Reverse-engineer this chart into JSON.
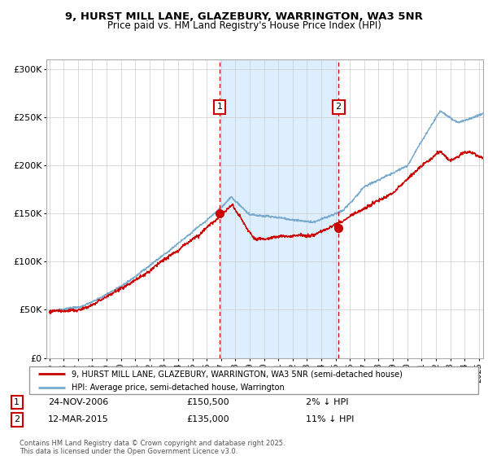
{
  "title_line1": "9, HURST MILL LANE, GLAZEBURY, WARRINGTON, WA3 5NR",
  "title_line2": "Price paid vs. HM Land Registry's House Price Index (HPI)",
  "xlim_start": 1994.8,
  "xlim_end": 2025.3,
  "ylim_min": 0,
  "ylim_max": 310000,
  "yticks": [
    0,
    50000,
    100000,
    150000,
    200000,
    250000,
    300000
  ],
  "ytick_labels": [
    "£0",
    "£50K",
    "£100K",
    "£150K",
    "£200K",
    "£250K",
    "£300K"
  ],
  "xticks": [
    1995,
    1996,
    1997,
    1998,
    1999,
    2000,
    2001,
    2002,
    2003,
    2004,
    2005,
    2006,
    2007,
    2008,
    2009,
    2010,
    2011,
    2012,
    2013,
    2014,
    2015,
    2016,
    2017,
    2018,
    2019,
    2020,
    2021,
    2022,
    2023,
    2024,
    2025
  ],
  "sale1_x": 2006.9,
  "sale1_y": 150500,
  "sale1_label": "1",
  "sale2_x": 2015.2,
  "sale2_y": 135000,
  "sale2_label": "2",
  "vline1_x": 2006.9,
  "vline2_x": 2015.2,
  "legend_line1": "9, HURST MILL LANE, GLAZEBURY, WARRINGTON, WA3 5NR (semi-detached house)",
  "legend_line2": "HPI: Average price, semi-detached house, Warrington",
  "annotation1_date": "24-NOV-2006",
  "annotation1_price": "£150,500",
  "annotation1_hpi": "2% ↓ HPI",
  "annotation2_date": "12-MAR-2015",
  "annotation2_price": "£135,000",
  "annotation2_hpi": "11% ↓ HPI",
  "footer": "Contains HM Land Registry data © Crown copyright and database right 2025.\nThis data is licensed under the Open Government Licence v3.0.",
  "property_line_color": "#cc0000",
  "hpi_line_color": "#77aacc",
  "background_color": "#ddeeff",
  "vline_color": "#cc0000",
  "marker_color": "#cc0000"
}
